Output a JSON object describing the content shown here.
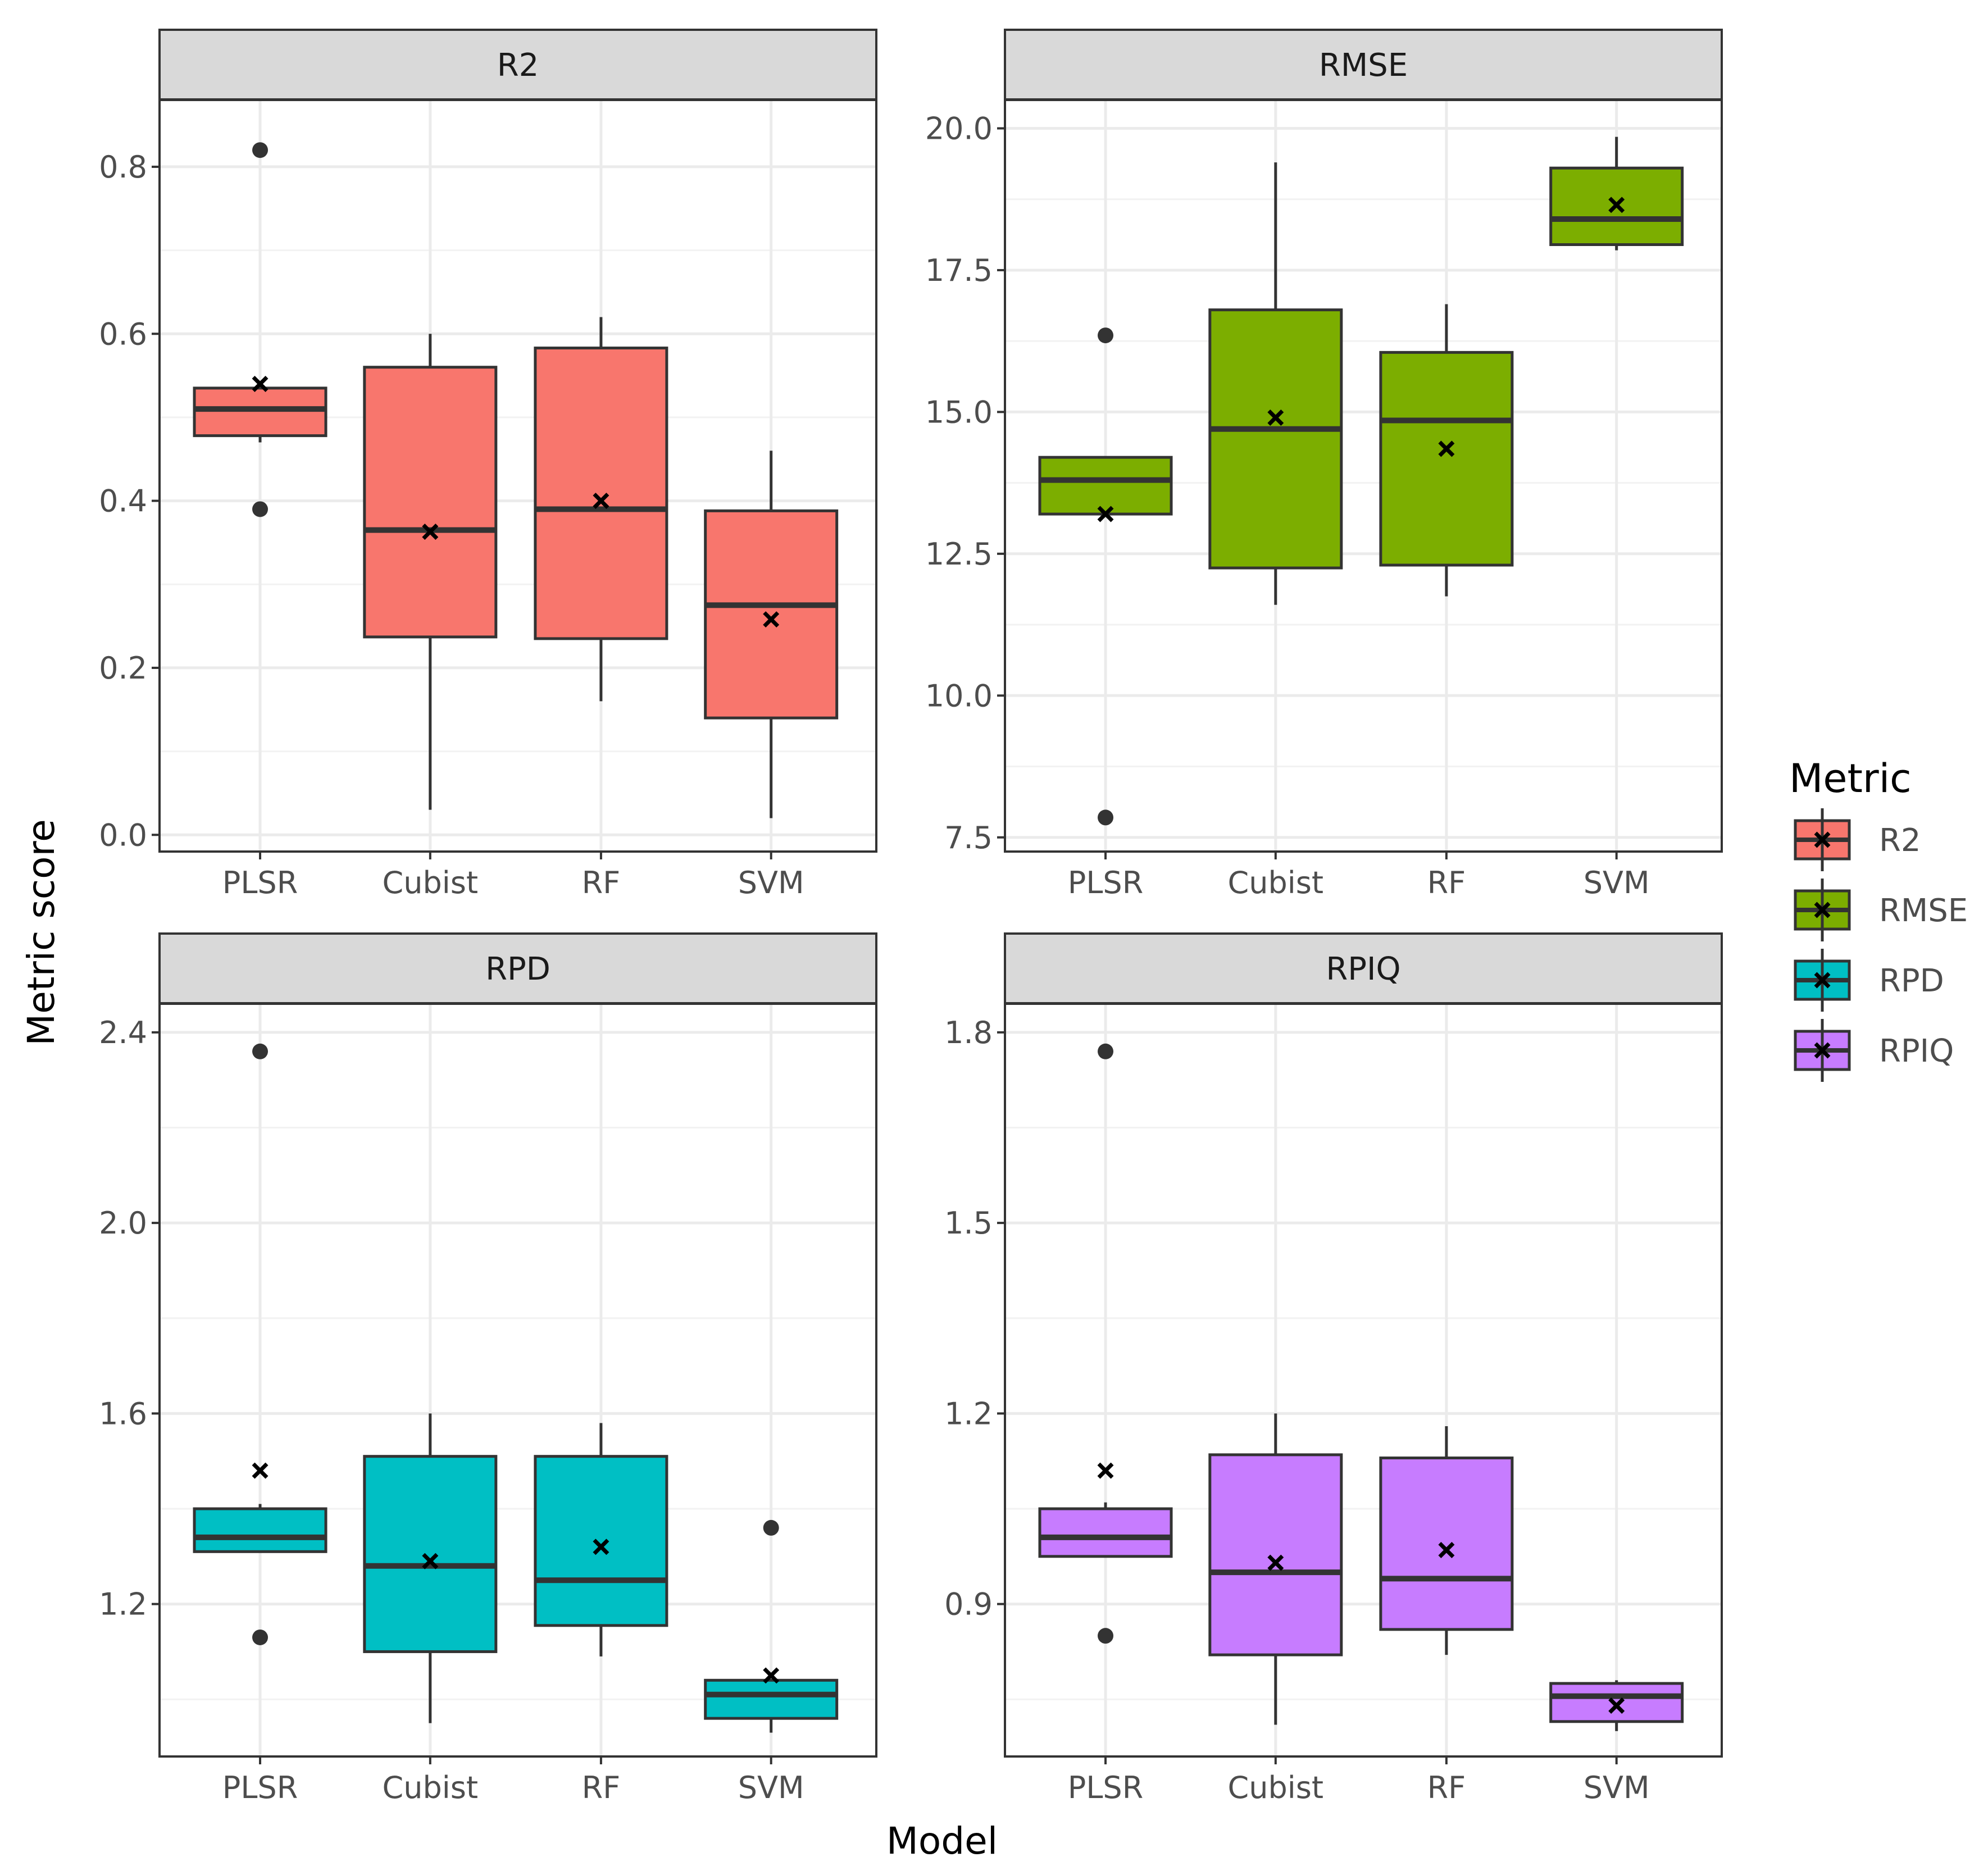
{
  "chart_data": {
    "type": "boxplot",
    "xlabel": "Model",
    "ylabel": "Metric score",
    "categories": [
      "PLSR",
      "Cubist",
      "RF",
      "SVM"
    ],
    "legend": {
      "title": "Metric",
      "position": "right",
      "entries": [
        {
          "label": "R2",
          "color": "#F8766D"
        },
        {
          "label": "RMSE",
          "color": "#7CAE00"
        },
        {
          "label": "RPD",
          "color": "#00BFC4"
        },
        {
          "label": "RPIQ",
          "color": "#C77CFF"
        }
      ]
    },
    "panels": [
      {
        "title": "R2",
        "color": "#F8766D",
        "ylim": [
          -0.02,
          0.88
        ],
        "yticks": [
          0.0,
          0.2,
          0.4,
          0.6,
          0.8
        ],
        "tick_labels": [
          "0.0",
          "0.2",
          "0.4",
          "0.6",
          "0.8"
        ],
        "boxes": [
          {
            "category": "PLSR",
            "whisker_low": 0.47,
            "q1": 0.478,
            "median": 0.51,
            "q3": 0.535,
            "whisker_high": 0.535,
            "mean": 0.54,
            "outliers": [
              0.82,
              0.39
            ]
          },
          {
            "category": "Cubist",
            "whisker_low": 0.03,
            "q1": 0.237,
            "median": 0.365,
            "q3": 0.56,
            "whisker_high": 0.6,
            "mean": 0.363,
            "outliers": []
          },
          {
            "category": "RF",
            "whisker_low": 0.16,
            "q1": 0.235,
            "median": 0.39,
            "q3": 0.583,
            "whisker_high": 0.62,
            "mean": 0.4,
            "outliers": []
          },
          {
            "category": "SVM",
            "whisker_low": 0.02,
            "q1": 0.14,
            "median": 0.275,
            "q3": 0.388,
            "whisker_high": 0.46,
            "mean": 0.258,
            "outliers": []
          }
        ]
      },
      {
        "title": "RMSE",
        "color": "#7CAE00",
        "ylim": [
          7.25,
          20.5
        ],
        "yticks": [
          7.5,
          10.0,
          12.5,
          15.0,
          17.5,
          20.0
        ],
        "tick_labels": [
          "7.5",
          "10.0",
          "12.5",
          "15.0",
          "17.5",
          "20.0"
        ],
        "boxes": [
          {
            "category": "PLSR",
            "whisker_low": 13.2,
            "q1": 13.2,
            "median": 13.8,
            "q3": 14.2,
            "whisker_high": 14.2,
            "mean": 13.2,
            "outliers": [
              16.35,
              7.85
            ]
          },
          {
            "category": "Cubist",
            "whisker_low": 11.6,
            "q1": 12.25,
            "median": 14.7,
            "q3": 16.8,
            "whisker_high": 19.4,
            "mean": 14.9,
            "outliers": []
          },
          {
            "category": "RF",
            "whisker_low": 11.75,
            "q1": 12.3,
            "median": 14.85,
            "q3": 16.05,
            "whisker_high": 16.9,
            "mean": 14.35,
            "outliers": []
          },
          {
            "category": "SVM",
            "whisker_low": 17.85,
            "q1": 17.95,
            "median": 18.4,
            "q3": 19.3,
            "whisker_high": 19.85,
            "mean": 18.65,
            "outliers": []
          }
        ]
      },
      {
        "title": "RPD",
        "color": "#00BFC4",
        "ylim": [
          0.88,
          2.46
        ],
        "yticks": [
          1.2,
          1.6,
          2.0,
          2.4
        ],
        "tick_labels": [
          "1.2",
          "1.6",
          "2.0",
          "2.4"
        ],
        "boxes": [
          {
            "category": "PLSR",
            "whisker_low": 1.31,
            "q1": 1.31,
            "median": 1.34,
            "q3": 1.4,
            "whisker_high": 1.41,
            "mean": 1.48,
            "outliers": [
              2.36,
              1.13
            ]
          },
          {
            "category": "Cubist",
            "whisker_low": 0.95,
            "q1": 1.1,
            "median": 1.28,
            "q3": 1.51,
            "whisker_high": 1.6,
            "mean": 1.29,
            "outliers": []
          },
          {
            "category": "RF",
            "whisker_low": 1.09,
            "q1": 1.155,
            "median": 1.25,
            "q3": 1.51,
            "whisker_high": 1.58,
            "mean": 1.32,
            "outliers": []
          },
          {
            "category": "SVM",
            "whisker_low": 0.93,
            "q1": 0.96,
            "median": 1.01,
            "q3": 1.04,
            "whisker_high": 1.04,
            "mean": 1.05,
            "outliers": [
              1.36
            ]
          }
        ]
      },
      {
        "title": "RPIQ",
        "color": "#C77CFF",
        "ylim": [
          0.66,
          1.845
        ],
        "yticks": [
          0.9,
          1.2,
          1.5,
          1.8
        ],
        "tick_labels": [
          "0.9",
          "1.2",
          "1.5",
          "1.8"
        ],
        "boxes": [
          {
            "category": "PLSR",
            "whisker_low": 0.975,
            "q1": 0.975,
            "median": 1.005,
            "q3": 1.05,
            "whisker_high": 1.06,
            "mean": 1.11,
            "outliers": [
              1.77,
              0.85
            ]
          },
          {
            "category": "Cubist",
            "whisker_low": 0.71,
            "q1": 0.82,
            "median": 0.95,
            "q3": 1.135,
            "whisker_high": 1.2,
            "mean": 0.965,
            "outliers": []
          },
          {
            "category": "RF",
            "whisker_low": 0.82,
            "q1": 0.86,
            "median": 0.94,
            "q3": 1.13,
            "whisker_high": 1.18,
            "mean": 0.985,
            "outliers": []
          },
          {
            "category": "SVM",
            "whisker_low": 0.7,
            "q1": 0.715,
            "median": 0.755,
            "q3": 0.775,
            "whisker_high": 0.78,
            "mean": 0.74,
            "outliers": []
          }
        ]
      }
    ]
  }
}
